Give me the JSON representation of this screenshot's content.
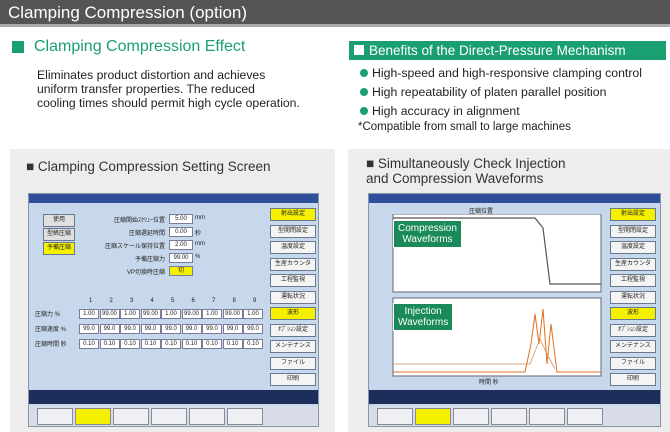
{
  "header": {
    "title": "Clamping Compression (option)"
  },
  "effect": {
    "title": "Clamping Compression Effect",
    "lines": [
      "Eliminates product distortion and achieves",
      "uniform transfer properties. The reduced",
      "cooling times should permit high cycle operation."
    ]
  },
  "benefits": {
    "title": "Benefits of the Direct-Pressure Mechanism",
    "items": [
      "High-speed and high-responsive clamping control",
      "High repeatability of platen parallel position",
      "High accuracy in alignment"
    ],
    "note": "*Compatible from small to large machines"
  },
  "setting_screen": {
    "title": "■ Clamping Compression Setting Screen",
    "left_buttons": [
      "使用",
      "型締圧縮",
      "予備圧縮"
    ],
    "fields": [
      [
        "圧縮開始ｽｸﾘｭｰ位置",
        "5.00",
        "mm"
      ],
      [
        "圧縮遅延時間",
        "0.00",
        "秒"
      ],
      [
        "圧縮スケール保持位置",
        "2.00",
        "mm"
      ],
      [
        "予備圧縮力",
        "99.00",
        "%"
      ],
      [
        "VP切換時圧縮",
        "切",
        ""
      ]
    ],
    "columns": [
      "1",
      "2",
      "3",
      "4",
      "5",
      "6",
      "7",
      "8",
      "9"
    ],
    "rows": [
      [
        "圧縮力 %",
        "1.00",
        "99.00",
        "1.00",
        "99.00",
        "1.00",
        "99.00",
        "1.00",
        "99.00",
        "1.00"
      ],
      [
        "圧縮速度 %",
        "99.0",
        "99.0",
        "99.0",
        "99.0",
        "99.0",
        "99.0",
        "99.0",
        "99.0",
        "99.0"
      ],
      [
        "圧縮時間 秒",
        "0.10",
        "0.10",
        "0.10",
        "0.10",
        "0.10",
        "0.10",
        "0.10",
        "0.10",
        "0.10"
      ]
    ],
    "side_buttons": [
      "射出設定",
      "型開閉設定",
      "温度設定",
      "生産カウンタ",
      "工程監視",
      "運転状況",
      "波形",
      "ｵﾌﾟｼｮﾝ設定",
      "メンテナンス",
      "ファイル",
      "印刷"
    ]
  },
  "waveform_screen": {
    "title": [
      "■ Simultaneously Check Injection",
      "and Compression Waveforms"
    ],
    "graph_title": "圧縮位置",
    "x_label": "時間 秒",
    "compression_label": [
      "Compression",
      "Waveforms"
    ],
    "injection_label": [
      "Injection",
      "Waveforms"
    ],
    "side_buttons": [
      "射出設定",
      "型開閉設定",
      "温度設定",
      "生産カウンタ",
      "工程監視",
      "運転状況",
      "波形",
      "ｵﾌﾟｼｮﾝ設定",
      "メンテナンス",
      "ファイル",
      "印刷"
    ]
  }
}
